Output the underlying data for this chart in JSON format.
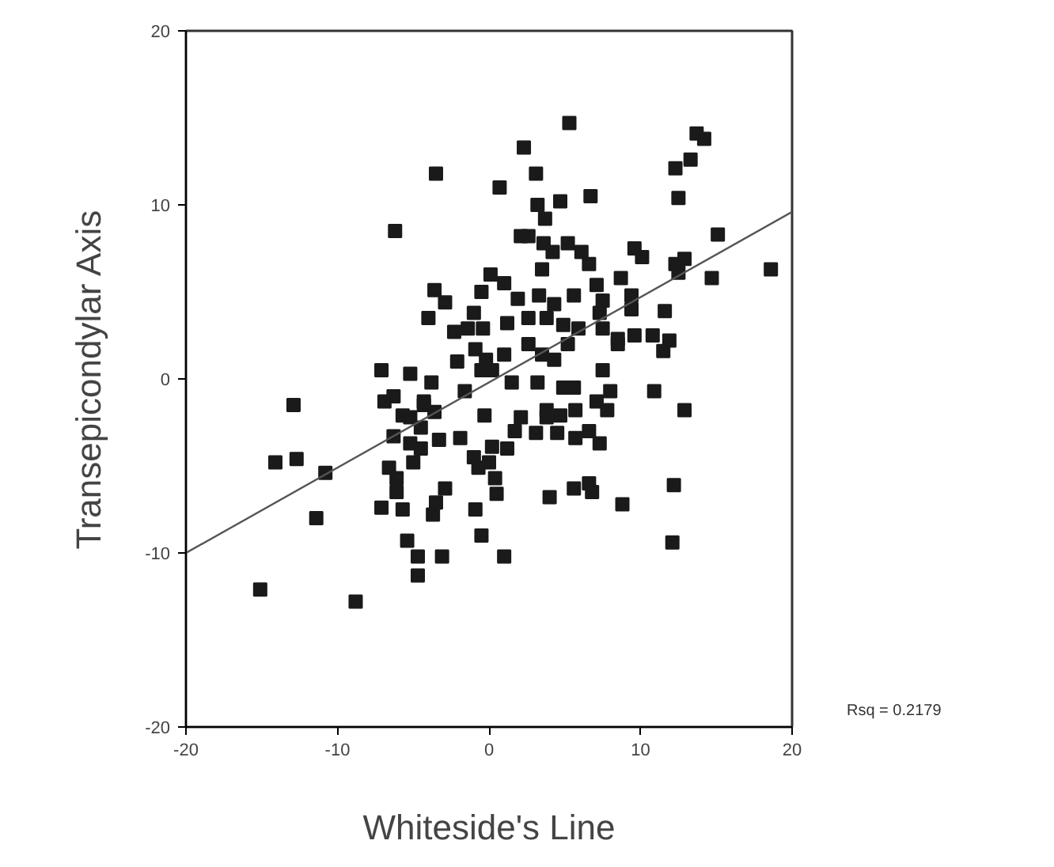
{
  "chart_data": {
    "type": "scatter",
    "xlabel": "Whiteside's Line",
    "ylabel": "Transepicondylar Axis",
    "annotations": [
      "Rsq = 0.2179"
    ],
    "xlim": [
      -20,
      20
    ],
    "ylim": [
      -20,
      20
    ],
    "xticks": [
      -20,
      -10,
      0,
      10,
      20
    ],
    "yticks": [
      -20,
      -10,
      0,
      10,
      20
    ],
    "grid": false,
    "marker": "square",
    "series": [
      {
        "type": "scatter",
        "color": "#1a1a1a",
        "x": [
          -3.5,
          0.7,
          -6.2,
          0.1,
          -0.5,
          -3.6,
          -2.9,
          -4.0,
          -1.0,
          -2.3,
          -1.4,
          -0.9,
          -2.1,
          -7.1,
          -5.2,
          -3.8,
          -0.5,
          -12.9,
          -6.3,
          -6.9,
          -4.3,
          -1.6,
          5.3,
          2.3,
          13.7,
          14.2,
          12.3,
          13.3,
          3.1,
          4.7,
          6.7,
          12.5,
          3.2,
          3.7,
          15.1,
          2.1,
          2.6,
          3.6,
          4.2,
          5.2,
          6.1,
          6.6,
          9.6,
          10.1,
          3.5,
          12.3,
          12.9,
          12.5,
          14.7,
          18.6,
          8.7,
          1.0,
          7.1,
          9.4,
          9.4,
          11.6,
          1.9,
          3.3,
          4.3,
          5.6,
          7.5,
          7.3,
          1.2,
          2.6,
          3.8,
          4.9,
          5.9,
          7.5,
          8.5,
          9.6,
          10.8,
          11.9,
          11.5,
          8.5,
          -0.4,
          -0.2,
          1.0,
          2.6,
          3.5,
          4.3,
          5.2,
          7.5,
          1.5,
          3.2,
          4.9,
          5.6,
          8.0,
          10.9,
          12.9,
          3.8,
          0.2,
          -5.7,
          -5.2,
          -4.3,
          -3.6,
          -4.5,
          -6.3,
          -5.2,
          -4.5,
          -5.0,
          -3.3,
          -1.9,
          -0.3,
          0.2,
          -1.0,
          -0.7,
          0.0,
          -14.1,
          -12.7,
          -10.8,
          -6.6,
          -6.1,
          -6.1,
          -2.9,
          -3.5,
          -3.7,
          -7.1,
          -5.7,
          -0.9,
          0.4,
          0.5,
          -11.4,
          -0.5,
          -5.4,
          -4.7,
          -3.1,
          -4.7,
          -15.1,
          -8.8,
          1.0,
          2.1,
          3.8,
          4.7,
          5.7,
          7.1,
          7.8,
          1.7,
          3.1,
          4.5,
          5.7,
          6.6,
          7.3,
          1.2,
          4.0,
          5.6,
          6.6,
          6.8,
          8.8,
          12.2,
          12.1
        ],
        "values": [
          11.8,
          11.0,
          8.5,
          6.0,
          5.0,
          5.1,
          4.4,
          3.5,
          3.8,
          2.7,
          2.9,
          1.7,
          1.0,
          0.5,
          0.3,
          -0.2,
          0.5,
          -1.5,
          -1.0,
          -1.3,
          -1.3,
          -0.7,
          14.7,
          13.3,
          14.1,
          13.8,
          12.1,
          12.6,
          11.8,
          10.2,
          10.5,
          10.4,
          10.0,
          9.2,
          8.3,
          8.2,
          8.2,
          7.8,
          7.3,
          7.8,
          7.3,
          6.6,
          7.5,
          7.0,
          6.3,
          6.6,
          6.9,
          6.1,
          5.8,
          6.3,
          5.8,
          5.5,
          5.4,
          4.8,
          4.0,
          3.9,
          4.6,
          4.8,
          4.3,
          4.8,
          4.5,
          3.8,
          3.2,
          3.5,
          3.5,
          3.1,
          2.9,
          2.9,
          2.3,
          2.5,
          2.5,
          2.2,
          1.6,
          2.0,
          2.9,
          1.1,
          1.4,
          2.0,
          1.4,
          1.1,
          2.0,
          0.5,
          -0.2,
          -0.2,
          -0.5,
          -0.5,
          -0.7,
          -0.7,
          -1.8,
          -1.8,
          0.5,
          -2.1,
          -2.2,
          -1.5,
          -1.9,
          -2.8,
          -3.3,
          -3.7,
          -4.0,
          -4.8,
          -3.5,
          -3.4,
          -2.1,
          -3.9,
          -4.5,
          -5.1,
          -4.8,
          -4.8,
          -4.6,
          -5.4,
          -5.1,
          -6.5,
          -5.7,
          -6.3,
          -7.1,
          -7.8,
          -7.4,
          -7.5,
          -7.5,
          -5.7,
          -6.6,
          -8.0,
          -9.0,
          -9.3,
          -10.2,
          -10.2,
          -11.3,
          -12.1,
          -12.8,
          -10.2,
          -2.2,
          -2.2,
          -2.1,
          -1.8,
          -1.3,
          -1.8,
          -3.0,
          -3.1,
          -3.1,
          -3.4,
          -3.0,
          -3.7,
          -4.0,
          -6.8,
          -6.3,
          -6.0,
          -6.5,
          -7.2,
          -6.1,
          -9.4
        ]
      },
      {
        "type": "line",
        "marker": "none",
        "color": "#555555",
        "x": [
          -20,
          20
        ],
        "values": [
          -10.0,
          9.6
        ]
      }
    ]
  }
}
